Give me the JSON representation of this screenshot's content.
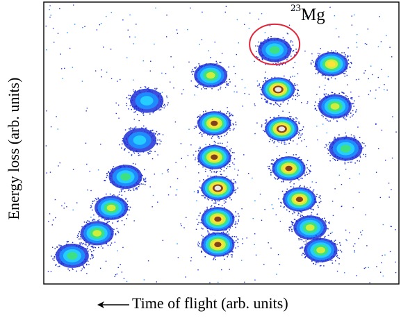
{
  "chart_data": {
    "type": "scatter",
    "title": "",
    "xlabel": "Time of flight (arb. units)",
    "ylabel": "Energy loss (arb. units)",
    "xlim": [
      0,
      100
    ],
    "ylim": [
      0,
      100
    ],
    "x_direction_note": "←",
    "grid": false,
    "legend": "none",
    "colormap": [
      "#1f2fd6",
      "#1e8cff",
      "#26d0ff",
      "#3ee27a",
      "#d6ee3a",
      "#ffe23a",
      "#7a3a18",
      "#f2f2f2"
    ],
    "annotation": {
      "mass": "23",
      "element": "Mg",
      "circle_color": "#e0253a",
      "center": [
        65,
        85
      ]
    },
    "clusters": [
      {
        "x": 8,
        "y": 10,
        "peak": 0.45
      },
      {
        "x": 15,
        "y": 18,
        "peak": 0.55
      },
      {
        "x": 19,
        "y": 27,
        "peak": 0.5
      },
      {
        "x": 23,
        "y": 38,
        "peak": 0.4
      },
      {
        "x": 27,
        "y": 51,
        "peak": 0.35
      },
      {
        "x": 29,
        "y": 65,
        "peak": 0.35
      },
      {
        "x": 49,
        "y": 14,
        "peak": 0.8
      },
      {
        "x": 49,
        "y": 23,
        "peak": 0.8
      },
      {
        "x": 49,
        "y": 34,
        "peak": 0.95
      },
      {
        "x": 48,
        "y": 45,
        "peak": 0.8
      },
      {
        "x": 48,
        "y": 57,
        "peak": 0.8
      },
      {
        "x": 47,
        "y": 74,
        "peak": 0.55
      },
      {
        "x": 65,
        "y": 83,
        "peak": 0.4
      },
      {
        "x": 66,
        "y": 69,
        "peak": 1.0
      },
      {
        "x": 67,
        "y": 55,
        "peak": 0.98
      },
      {
        "x": 69,
        "y": 41,
        "peak": 0.82
      },
      {
        "x": 72,
        "y": 30,
        "peak": 0.88
      },
      {
        "x": 75,
        "y": 20,
        "peak": 0.6
      },
      {
        "x": 78,
        "y": 12,
        "peak": 0.55
      },
      {
        "x": 81,
        "y": 78,
        "peak": 0.75
      },
      {
        "x": 82,
        "y": 63,
        "peak": 0.55
      },
      {
        "x": 85,
        "y": 48,
        "peak": 0.45
      }
    ]
  }
}
